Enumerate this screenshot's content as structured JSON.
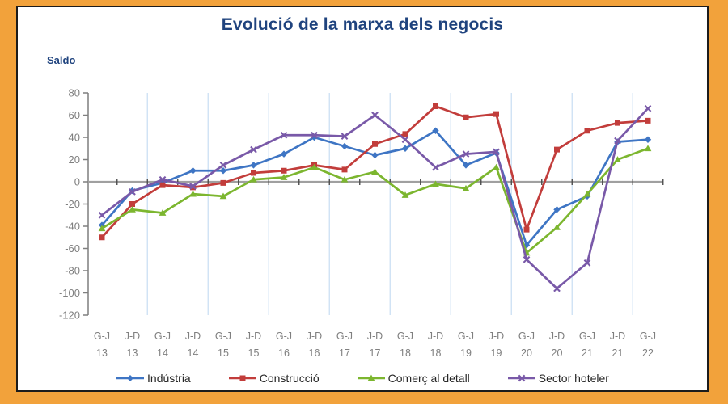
{
  "chart_data": {
    "type": "line",
    "title": "Evolució de la marxa dels negocis",
    "ylabel": "Saldo",
    "ylim": [
      -120,
      80
    ],
    "ytick_step": 20,
    "yticks": [
      80,
      60,
      40,
      20,
      0,
      -20,
      -40,
      -60,
      -80,
      -100,
      -120
    ],
    "grid": "vertical-light-blue-at-year-boundaries",
    "legend_position": "bottom",
    "categories": [
      "G-J 13",
      "J-D 13",
      "G-J 14",
      "J-D 14",
      "G-J 15",
      "J-D 15",
      "G-J 16",
      "J-D 16",
      "G-J 17",
      "J-D 17",
      "G-J 18",
      "J-D 18",
      "G-J 19",
      "J-D 19",
      "G-J 20",
      "J-D 20",
      "G-J 21",
      "J-D 21",
      "G-J 22"
    ],
    "series": [
      {
        "name": "Indústria",
        "color": "#3E75C4",
        "marker": "diamond",
        "values": [
          -39,
          -8,
          -1,
          10,
          10,
          15,
          25,
          40,
          32,
          24,
          30,
          46,
          15,
          26,
          -57,
          -25,
          -13,
          36,
          38
        ]
      },
      {
        "name": "Construcció",
        "color": "#C23D3B",
        "marker": "square",
        "values": [
          -50,
          -20,
          -3,
          -5,
          -1,
          8,
          10,
          15,
          11,
          34,
          43,
          68,
          58,
          61,
          -43,
          29,
          46,
          53,
          55
        ]
      },
      {
        "name": "Comerç al detall",
        "color": "#7CB62F",
        "marker": "triangle",
        "values": [
          -42,
          -25,
          -28,
          -11,
          -13,
          2,
          4,
          13,
          2,
          9,
          -12,
          -2,
          -6,
          13,
          -64,
          -41,
          -11,
          20,
          30
        ]
      },
      {
        "name": "Sector hoteler",
        "color": "#7959A8",
        "marker": "x",
        "values": [
          -30,
          -9,
          2,
          -4,
          15,
          29,
          42,
          42,
          41,
          60,
          38,
          13,
          25,
          27,
          -70,
          -96,
          -73,
          37,
          66
        ]
      }
    ]
  },
  "colors": {
    "page_border": "#F2A23B",
    "panel_frame": "#1c1c1c",
    "title_text": "#1F437E",
    "axis_text": "#7F7F7F",
    "axis_line": "#7F7F7F",
    "zero_line": "#A0A0A0",
    "zero_tick": "#4D4D4D",
    "gridline": "#CCE0F4"
  }
}
